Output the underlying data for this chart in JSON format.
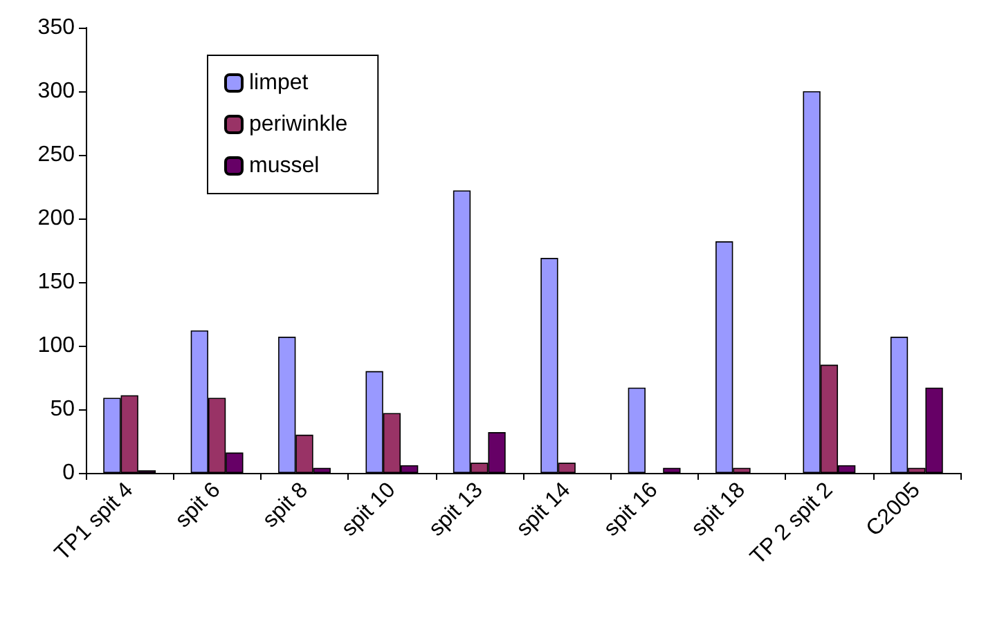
{
  "chart_data": {
    "type": "bar",
    "categories": [
      "TP1 spit 4",
      "spit 6",
      "spit 8",
      "spit 10",
      "spit 13",
      "spit 14",
      "spit 16",
      "spit 18",
      "TP 2 spit 2",
      "C2005"
    ],
    "series": [
      {
        "name": "limpet",
        "color": "#9999ff",
        "values": [
          59,
          112,
          107,
          80,
          222,
          169,
          67,
          182,
          300,
          107
        ]
      },
      {
        "name": "periwinkle",
        "color": "#993366",
        "values": [
          61,
          59,
          30,
          47,
          8,
          8,
          0,
          4,
          85,
          4
        ]
      },
      {
        "name": "mussel",
        "color": "#660066",
        "values": [
          2,
          16,
          4,
          6,
          32,
          0,
          4,
          0,
          6,
          67
        ]
      }
    ],
    "ylim": [
      0,
      350
    ],
    "yticks": [
      0,
      50,
      100,
      150,
      200,
      250,
      300,
      350
    ],
    "grid": false,
    "legend": "top left"
  }
}
